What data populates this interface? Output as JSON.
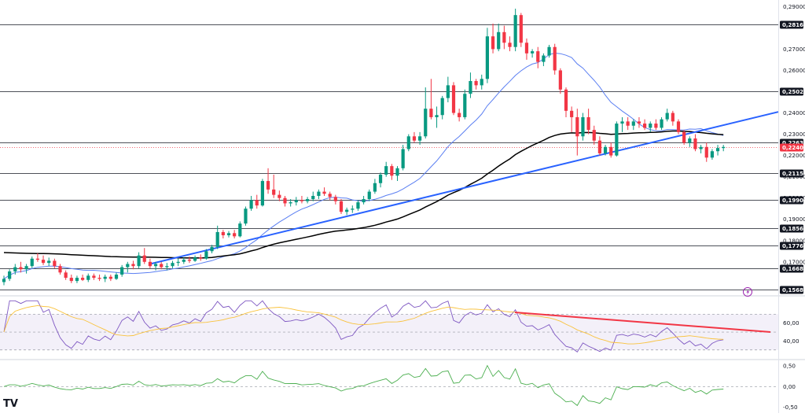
{
  "chart_data": {
    "type": "candlestick",
    "main_axis": {
      "ticks": [
        "0,29000",
        "0,27000",
        "0,26000",
        "0,24000",
        "0,23000",
        "0,22000",
        "0,21000",
        "0,20000",
        "0,19000",
        "0,18000",
        "0,17000"
      ],
      "tick_values": [
        0.29,
        0.27,
        0.26,
        0.24,
        0.23,
        0.22,
        0.21,
        0.2,
        0.19,
        0.18,
        0.17
      ],
      "ylim": [
        0.1555,
        0.2905
      ]
    },
    "horizontal_levels": [
      {
        "label": "0,28164",
        "value": 0.28164
      },
      {
        "label": "0,25025",
        "value": 0.25025
      },
      {
        "label": "0,22632",
        "value": 0.22632
      },
      {
        "label": "0,21154",
        "value": 0.21154
      },
      {
        "label": "0,19909",
        "value": 0.19909
      },
      {
        "label": "0,18566",
        "value": 0.18566
      },
      {
        "label": "0,17766",
        "value": 0.17766
      },
      {
        "label": "0,16686",
        "value": 0.16686
      },
      {
        "label": "0,15680",
        "value": 0.1568
      }
    ],
    "current_price": {
      "label": "0,22401",
      "value": 0.22401,
      "color": "#f23645"
    },
    "candles": [
      [
        0.1605,
        0.1635,
        0.159,
        0.162
      ],
      [
        0.162,
        0.1665,
        0.161,
        0.1655
      ],
      [
        0.1655,
        0.169,
        0.164,
        0.1675
      ],
      [
        0.1675,
        0.17,
        0.165,
        0.1665
      ],
      [
        0.1665,
        0.169,
        0.1645,
        0.168
      ],
      [
        0.168,
        0.1725,
        0.167,
        0.1715
      ],
      [
        0.1715,
        0.174,
        0.17,
        0.171
      ],
      [
        0.171,
        0.173,
        0.1685,
        0.1695
      ],
      [
        0.1695,
        0.172,
        0.168,
        0.1705
      ],
      [
        0.1705,
        0.1715,
        0.167,
        0.168
      ],
      [
        0.168,
        0.169,
        0.164,
        0.165
      ],
      [
        0.165,
        0.166,
        0.1615,
        0.1625
      ],
      [
        0.1625,
        0.164,
        0.16,
        0.161
      ],
      [
        0.161,
        0.1635,
        0.16,
        0.1625
      ],
      [
        0.1625,
        0.164,
        0.161,
        0.1615
      ],
      [
        0.1615,
        0.1645,
        0.1605,
        0.1635
      ],
      [
        0.1635,
        0.1645,
        0.1615,
        0.1625
      ],
      [
        0.1625,
        0.164,
        0.161,
        0.162
      ],
      [
        0.162,
        0.164,
        0.1605,
        0.163
      ],
      [
        0.163,
        0.164,
        0.161,
        0.162
      ],
      [
        0.162,
        0.165,
        0.1615,
        0.164
      ],
      [
        0.164,
        0.1685,
        0.163,
        0.1675
      ],
      [
        0.1675,
        0.17,
        0.165,
        0.169
      ],
      [
        0.169,
        0.1705,
        0.1665,
        0.168
      ],
      [
        0.168,
        0.1745,
        0.167,
        0.173
      ],
      [
        0.173,
        0.1765,
        0.169,
        0.17
      ],
      [
        0.17,
        0.1715,
        0.167,
        0.168
      ],
      [
        0.168,
        0.17,
        0.166,
        0.169
      ],
      [
        0.169,
        0.17,
        0.1665,
        0.1675
      ],
      [
        0.1675,
        0.1695,
        0.166,
        0.168
      ],
      [
        0.168,
        0.1705,
        0.167,
        0.1695
      ],
      [
        0.1695,
        0.1715,
        0.168,
        0.17
      ],
      [
        0.17,
        0.172,
        0.169,
        0.171
      ],
      [
        0.171,
        0.1725,
        0.1695,
        0.1705
      ],
      [
        0.1705,
        0.173,
        0.17,
        0.172
      ],
      [
        0.172,
        0.1735,
        0.1705,
        0.1715
      ],
      [
        0.1715,
        0.176,
        0.171,
        0.175
      ],
      [
        0.175,
        0.178,
        0.174,
        0.177
      ],
      [
        0.177,
        0.187,
        0.176,
        0.184
      ],
      [
        0.184,
        0.185,
        0.181,
        0.1825
      ],
      [
        0.1825,
        0.1845,
        0.1815,
        0.1835
      ],
      [
        0.1835,
        0.185,
        0.181,
        0.182
      ],
      [
        0.182,
        0.189,
        0.1815,
        0.188
      ],
      [
        0.188,
        0.196,
        0.187,
        0.195
      ],
      [
        0.195,
        0.201,
        0.194,
        0.199
      ],
      [
        0.199,
        0.2015,
        0.195,
        0.1965
      ],
      [
        0.1965,
        0.209,
        0.196,
        0.208
      ],
      [
        0.208,
        0.214,
        0.202,
        0.204
      ],
      [
        0.204,
        0.211,
        0.2,
        0.2015
      ],
      [
        0.2015,
        0.2035,
        0.1985,
        0.2
      ],
      [
        0.2,
        0.201,
        0.196,
        0.1975
      ],
      [
        0.1975,
        0.1995,
        0.196,
        0.198
      ],
      [
        0.198,
        0.2005,
        0.1965,
        0.199
      ],
      [
        0.199,
        0.201,
        0.1975,
        0.1985
      ],
      [
        0.1985,
        0.2005,
        0.1975,
        0.1995
      ],
      [
        0.1995,
        0.203,
        0.1985,
        0.201
      ],
      [
        0.201,
        0.204,
        0.1995,
        0.203
      ],
      [
        0.203,
        0.205,
        0.201,
        0.202
      ],
      [
        0.202,
        0.203,
        0.199,
        0.2005
      ],
      [
        0.2005,
        0.2015,
        0.197,
        0.1985
      ],
      [
        0.1985,
        0.1995,
        0.1925,
        0.1935
      ],
      [
        0.1935,
        0.1955,
        0.192,
        0.1945
      ],
      [
        0.1945,
        0.1965,
        0.193,
        0.195
      ],
      [
        0.195,
        0.199,
        0.194,
        0.198
      ],
      [
        0.198,
        0.201,
        0.197,
        0.1995
      ],
      [
        0.1995,
        0.204,
        0.1985,
        0.203
      ],
      [
        0.203,
        0.209,
        0.202,
        0.207
      ],
      [
        0.207,
        0.212,
        0.205,
        0.211
      ],
      [
        0.211,
        0.217,
        0.21,
        0.215
      ],
      [
        0.215,
        0.216,
        0.2085,
        0.2105
      ],
      [
        0.2105,
        0.215,
        0.208,
        0.214
      ],
      [
        0.214,
        0.225,
        0.213,
        0.223
      ],
      [
        0.223,
        0.23,
        0.222,
        0.229
      ],
      [
        0.229,
        0.231,
        0.226,
        0.227
      ],
      [
        0.227,
        0.231,
        0.225,
        0.229
      ],
      [
        0.229,
        0.252,
        0.228,
        0.242
      ],
      [
        0.242,
        0.256,
        0.237,
        0.238
      ],
      [
        0.238,
        0.243,
        0.233,
        0.239
      ],
      [
        0.239,
        0.248,
        0.237,
        0.247
      ],
      [
        0.247,
        0.257,
        0.245,
        0.253
      ],
      [
        0.253,
        0.2545,
        0.239,
        0.24
      ],
      [
        0.24,
        0.242,
        0.236,
        0.238
      ],
      [
        0.238,
        0.251,
        0.237,
        0.249
      ],
      [
        0.249,
        0.259,
        0.247,
        0.255
      ],
      [
        0.255,
        0.256,
        0.251,
        0.253
      ],
      [
        0.253,
        0.258,
        0.251,
        0.256
      ],
      [
        0.256,
        0.28,
        0.254,
        0.276
      ],
      [
        0.276,
        0.282,
        0.268,
        0.27
      ],
      [
        0.27,
        0.282,
        0.269,
        0.278
      ],
      [
        0.278,
        0.281,
        0.27,
        0.273
      ],
      [
        0.273,
        0.276,
        0.269,
        0.271
      ],
      [
        0.271,
        0.289,
        0.269,
        0.286
      ],
      [
        0.286,
        0.287,
        0.271,
        0.273
      ],
      [
        0.273,
        0.275,
        0.265,
        0.268
      ],
      [
        0.268,
        0.27,
        0.266,
        0.269
      ],
      [
        0.269,
        0.271,
        0.261,
        0.264
      ],
      [
        0.264,
        0.268,
        0.262,
        0.267
      ],
      [
        0.267,
        0.272,
        0.266,
        0.271
      ],
      [
        0.271,
        0.2725,
        0.258,
        0.26
      ],
      [
        0.26,
        0.261,
        0.249,
        0.251
      ],
      [
        0.251,
        0.252,
        0.238,
        0.241
      ],
      [
        0.241,
        0.243,
        0.231,
        0.238
      ],
      [
        0.238,
        0.242,
        0.22,
        0.229
      ],
      [
        0.229,
        0.24,
        0.227,
        0.238
      ],
      [
        0.238,
        0.242,
        0.23,
        0.232
      ],
      [
        0.232,
        0.234,
        0.225,
        0.227
      ],
      [
        0.227,
        0.229,
        0.22,
        0.221
      ],
      [
        0.221,
        0.225,
        0.22,
        0.224
      ],
      [
        0.224,
        0.226,
        0.219,
        0.22
      ],
      [
        0.22,
        0.236,
        0.2195,
        0.235
      ],
      [
        0.235,
        0.238,
        0.231,
        0.236
      ],
      [
        0.236,
        0.238,
        0.232,
        0.234
      ],
      [
        0.234,
        0.237,
        0.232,
        0.236
      ],
      [
        0.236,
        0.238,
        0.233,
        0.235
      ],
      [
        0.235,
        0.237,
        0.232,
        0.233
      ],
      [
        0.233,
        0.236,
        0.231,
        0.235
      ],
      [
        0.235,
        0.237,
        0.232,
        0.233
      ],
      [
        0.233,
        0.238,
        0.232,
        0.237
      ],
      [
        0.237,
        0.242,
        0.236,
        0.24
      ],
      [
        0.24,
        0.241,
        0.234,
        0.236
      ],
      [
        0.236,
        0.237,
        0.23,
        0.231
      ],
      [
        0.231,
        0.232,
        0.225,
        0.226
      ],
      [
        0.226,
        0.229,
        0.224,
        0.228
      ],
      [
        0.228,
        0.23,
        0.222,
        0.223
      ],
      [
        0.223,
        0.225,
        0.221,
        0.224
      ],
      [
        0.224,
        0.226,
        0.217,
        0.219
      ],
      [
        0.219,
        0.223,
        0.218,
        0.222
      ],
      [
        0.222,
        0.225,
        0.22,
        0.2235
      ],
      [
        0.2235,
        0.225,
        0.222,
        0.224
      ]
    ],
    "colors": {
      "up": "#089981",
      "down": "#f23645",
      "ma_short": "#5b7ff2",
      "ma_long": "#000000",
      "trendline": "#2962ff"
    },
    "rsi_panel": {
      "ticks": [
        "60,00",
        "40,00"
      ],
      "tick_values": [
        60,
        40
      ],
      "ylim": [
        21,
        87
      ],
      "band": [
        30,
        70
      ],
      "rsi_color": "#7e57c2",
      "signal_color": "#f9c23c",
      "trendline_color": "#f23645"
    },
    "osc_panel": {
      "ticks": [
        "0,50",
        "0,00",
        "-0,50"
      ],
      "tick_values": [
        0.5,
        0.0,
        -0.5
      ],
      "ylim": [
        -0.55,
        0.6
      ],
      "line_color": "#4caf50"
    }
  },
  "footer": {
    "logo_text": "TV"
  },
  "icons": {
    "flash": "lightning-icon"
  }
}
